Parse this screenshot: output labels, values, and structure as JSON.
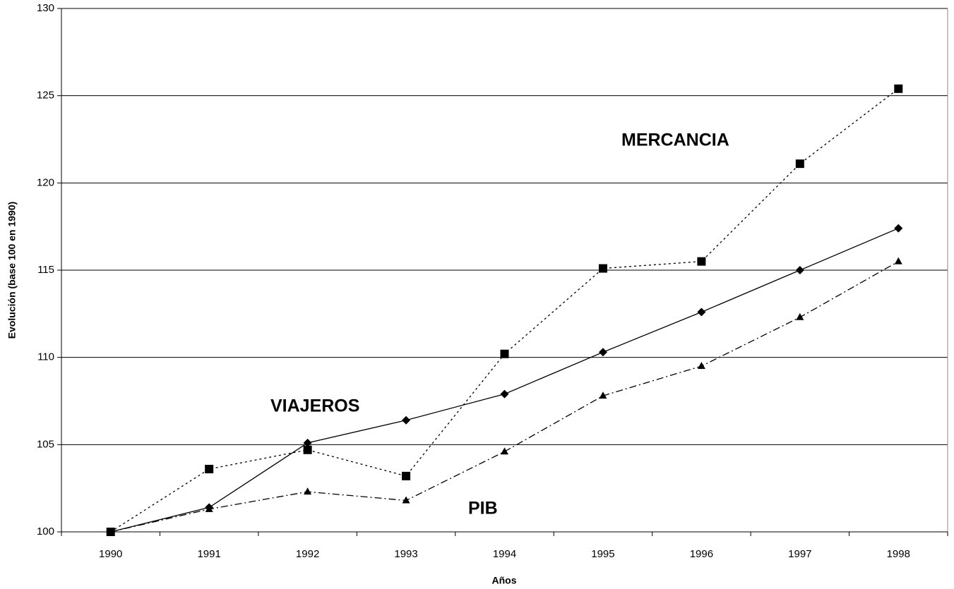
{
  "chart_data": {
    "type": "line",
    "x_label": "Años",
    "y_label": "Evolución (base 100 en 1990)",
    "categories": [
      "1990",
      "1991",
      "1992",
      "1993",
      "1994",
      "1995",
      "1996",
      "1997",
      "1998"
    ],
    "series": [
      {
        "name": "VIAJEROS",
        "color": "#000000",
        "marker": "diamond",
        "dash": "solid",
        "values": [
          100,
          101.4,
          105.1,
          106.4,
          107.9,
          110.3,
          112.6,
          115.0,
          117.4
        ]
      },
      {
        "name": "MERCANCIA",
        "color": "#000000",
        "marker": "square",
        "dash": "dotted",
        "values": [
          100,
          103.6,
          104.7,
          103.2,
          110.2,
          115.1,
          115.5,
          121.1,
          125.4
        ]
      },
      {
        "name": "PIB",
        "color": "#000000",
        "marker": "triangle",
        "dash": "dashdot",
        "values": [
          100,
          101.3,
          102.3,
          101.8,
          104.6,
          107.8,
          109.5,
          112.3,
          115.5
        ]
      }
    ],
    "ylim": [
      100,
      130
    ],
    "yticks": [
      100,
      105,
      110,
      115,
      120,
      125,
      130
    ],
    "grid": true
  }
}
